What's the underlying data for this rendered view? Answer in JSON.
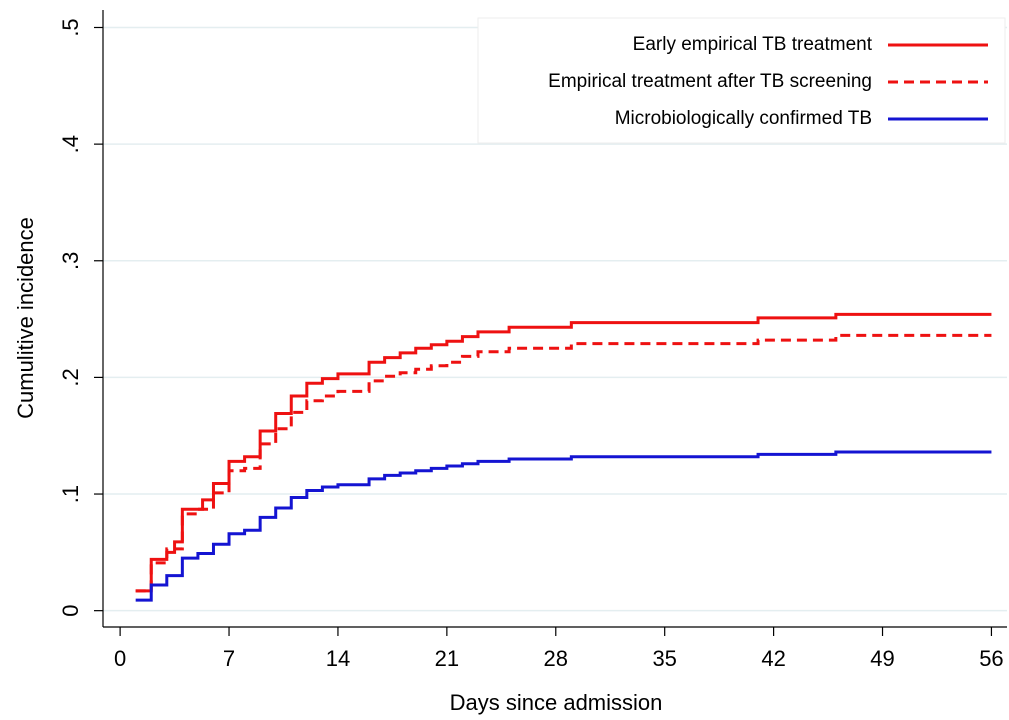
{
  "chart_data": {
    "type": "line",
    "step": "post",
    "x_label": "Days since admission",
    "y_label": "Cumulitive incidence",
    "xlim": [
      -1.1,
      57
    ],
    "ylim": [
      -0.014,
      0.515
    ],
    "xticks": [
      0,
      7,
      14,
      21,
      28,
      35,
      42,
      49,
      56
    ],
    "yticks": [
      0,
      {
        "value": 0.1,
        "label": ".1"
      },
      {
        "value": 0.2,
        "label": ".2"
      },
      {
        "value": 0.3,
        "label": ".3"
      },
      {
        "value": 0.4,
        "label": ".4"
      },
      {
        "value": 0.5,
        "label": ".5"
      }
    ],
    "grid": true,
    "legend": "top-right",
    "series": [
      {
        "name": "Early empirical TB treatment",
        "color": "#ee1111",
        "dash": false,
        "x": [
          1,
          2,
          3,
          3.5,
          4,
          5.3,
          6,
          7,
          8,
          9,
          10,
          11,
          12,
          13,
          14,
          16,
          17,
          18,
          19,
          20,
          21,
          22,
          23,
          25,
          29,
          41,
          46,
          56
        ],
        "values": [
          0.017,
          0.044,
          0.05,
          0.059,
          0.087,
          0.095,
          0.109,
          0.128,
          0.132,
          0.154,
          0.169,
          0.184,
          0.195,
          0.199,
          0.203,
          0.213,
          0.217,
          0.221,
          0.225,
          0.228,
          0.231,
          0.235,
          0.239,
          0.243,
          0.247,
          0.251,
          0.254,
          0.254
        ]
      },
      {
        "name": "Empirical treatment after TB screening",
        "color": "#ee1111",
        "dash": true,
        "x": [
          1,
          2,
          3,
          4,
          5,
          6,
          7,
          8,
          9,
          10,
          11,
          12,
          13,
          14,
          16,
          17,
          18,
          19,
          20,
          21,
          22,
          23,
          25,
          29,
          41,
          46,
          56
        ],
        "values": [
          0.017,
          0.041,
          0.053,
          0.083,
          0.087,
          0.101,
          0.12,
          0.122,
          0.143,
          0.156,
          0.17,
          0.18,
          0.184,
          0.188,
          0.197,
          0.201,
          0.204,
          0.207,
          0.21,
          0.213,
          0.218,
          0.222,
          0.225,
          0.229,
          0.232,
          0.236,
          0.236
        ]
      },
      {
        "name": "Microbiologically confirmed TB",
        "color": "#1414d2",
        "dash": false,
        "x": [
          1,
          2,
          3,
          4,
          5,
          6,
          7,
          8,
          9,
          10,
          11,
          12,
          13,
          14,
          16,
          17,
          18,
          19,
          20,
          21,
          22,
          23,
          25,
          29,
          41,
          46,
          56
        ],
        "values": [
          0.009,
          0.022,
          0.03,
          0.045,
          0.049,
          0.057,
          0.066,
          0.069,
          0.08,
          0.088,
          0.097,
          0.103,
          0.106,
          0.108,
          0.113,
          0.116,
          0.118,
          0.12,
          0.122,
          0.124,
          0.126,
          0.128,
          0.13,
          0.132,
          0.134,
          0.136,
          0.136
        ]
      }
    ]
  }
}
